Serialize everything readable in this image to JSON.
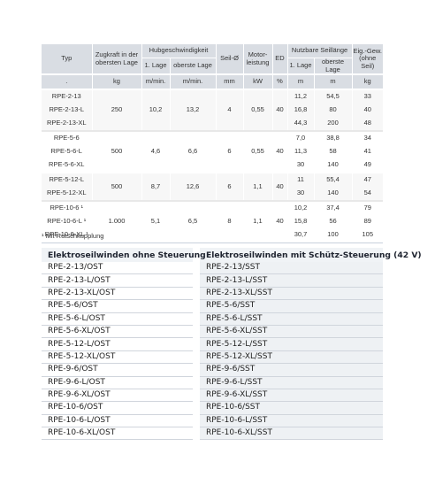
{
  "specs": {
    "headers": {
      "typ": "Typ",
      "zugkraft": "Zugkraft in der obersten Lage",
      "hubgeschwindigkeit": "Hubgeschwindigkeit",
      "lage1": "1. Lage",
      "oberste_lage": "oberste Lage",
      "seil": "Seil-Ø",
      "motorleistung": "Motor-leistung",
      "ed": "ED",
      "seillaenge": "Nutzbare Seillänge",
      "eigengewicht": "Eig.-Gew. (ohne Seil)"
    },
    "units": [
      ".",
      "kg",
      "m/min.",
      "m/min.",
      "mm",
      "kW",
      "%",
      "m",
      "m",
      "kg"
    ],
    "groups": [
      {
        "zugkraft": "250",
        "speed1": "10,2",
        "speed_top": "13,2",
        "seil": "4",
        "kw": "0,55",
        "ed": "40",
        "rows": [
          {
            "model": "RPE-2-13",
            "l1": "11,2",
            "top": "54,5",
            "weight": "33"
          },
          {
            "model": "RPE-2-13-L",
            "l1": "16,8",
            "top": "80",
            "weight": "40"
          },
          {
            "model": "RPE-2-13-XL",
            "l1": "44,3",
            "top": "200",
            "weight": "48"
          }
        ]
      },
      {
        "zugkraft": "500",
        "speed1": "4,6",
        "speed_top": "6,6",
        "seil": "6",
        "kw": "0,55",
        "ed": "40",
        "rows": [
          {
            "model": "RPE-5-6",
            "l1": "7,0",
            "top": "38,8",
            "weight": "34"
          },
          {
            "model": "RPE-5-6-L",
            "l1": "11,3",
            "top": "58",
            "weight": "41"
          },
          {
            "model": "RPE-5-6-XL",
            "l1": "30",
            "top": "140",
            "weight": "49"
          }
        ]
      },
      {
        "zugkraft": "500",
        "speed1": "8,7",
        "speed_top": "12,6",
        "seil": "6",
        "kw": "1,1",
        "ed": "40",
        "rows": [
          {
            "model": "RPE-5-12-L",
            "l1": "11",
            "top": "55,4",
            "weight": "47"
          },
          {
            "model": "RPE-5-12-XL",
            "l1": "30",
            "top": "140",
            "weight": "54"
          }
        ]
      },
      {
        "zugkraft": "1.000",
        "speed1": "5,1",
        "speed_top": "6,5",
        "seil": "8",
        "kw": "1,1",
        "ed": "40",
        "rows": [
          {
            "model": "RPE-10-6 ¹",
            "l1": "10,2",
            "top": "37,4",
            "weight": "79"
          },
          {
            "model": "RPE-10-6-L ¹",
            "l1": "15,8",
            "top": "56",
            "weight": "89"
          },
          {
            "model": "RPE-10-6-XL ¹",
            "l1": "30,7",
            "top": "100",
            "weight": "105"
          }
        ]
      }
    ],
    "footnote": "¹ Mit Rutschkupplung"
  },
  "models": {
    "header_left": "Elektroseilwinden ohne Steuerung",
    "header_right": "Elektroseilwinden mit Schütz-Steuerung (42 V)",
    "rows": [
      [
        "RPE-2-13/OST",
        "RPE-2-13/SST"
      ],
      [
        "RPE-2-13-L/OST",
        "RPE-2-13-L/SST"
      ],
      [
        "RPE-2-13-XL/OST",
        "RPE-2-13-XL/SST"
      ],
      [
        "RPE-5-6/OST",
        "RPE-5-6/SST"
      ],
      [
        "RPE-5-6-L/OST",
        "RPE-5-6-L/SST"
      ],
      [
        "RPE-5-6-XL/OST",
        "RPE-5-6-XL/SST"
      ],
      [
        "RPE-5-12-L/OST",
        "RPE-5-12-L/SST"
      ],
      [
        "RPE-5-12-XL/OST",
        "RPE-5-12-XL/SST"
      ],
      [
        "RPE-9-6/OST",
        "RPE-9-6/SST"
      ],
      [
        "RPE-9-6-L/OST",
        "RPE-9-6-L/SST"
      ],
      [
        "RPE-9-6-XL/OST",
        "RPE-9-6-XL/SST"
      ],
      [
        "RPE-10-6/OST",
        "RPE-10-6/SST"
      ],
      [
        "RPE-10-6-L/OST",
        "RPE-10-6-L/SST"
      ],
      [
        "RPE-10-6-XL/OST",
        "RPE-10-6-XL/SST"
      ]
    ]
  }
}
